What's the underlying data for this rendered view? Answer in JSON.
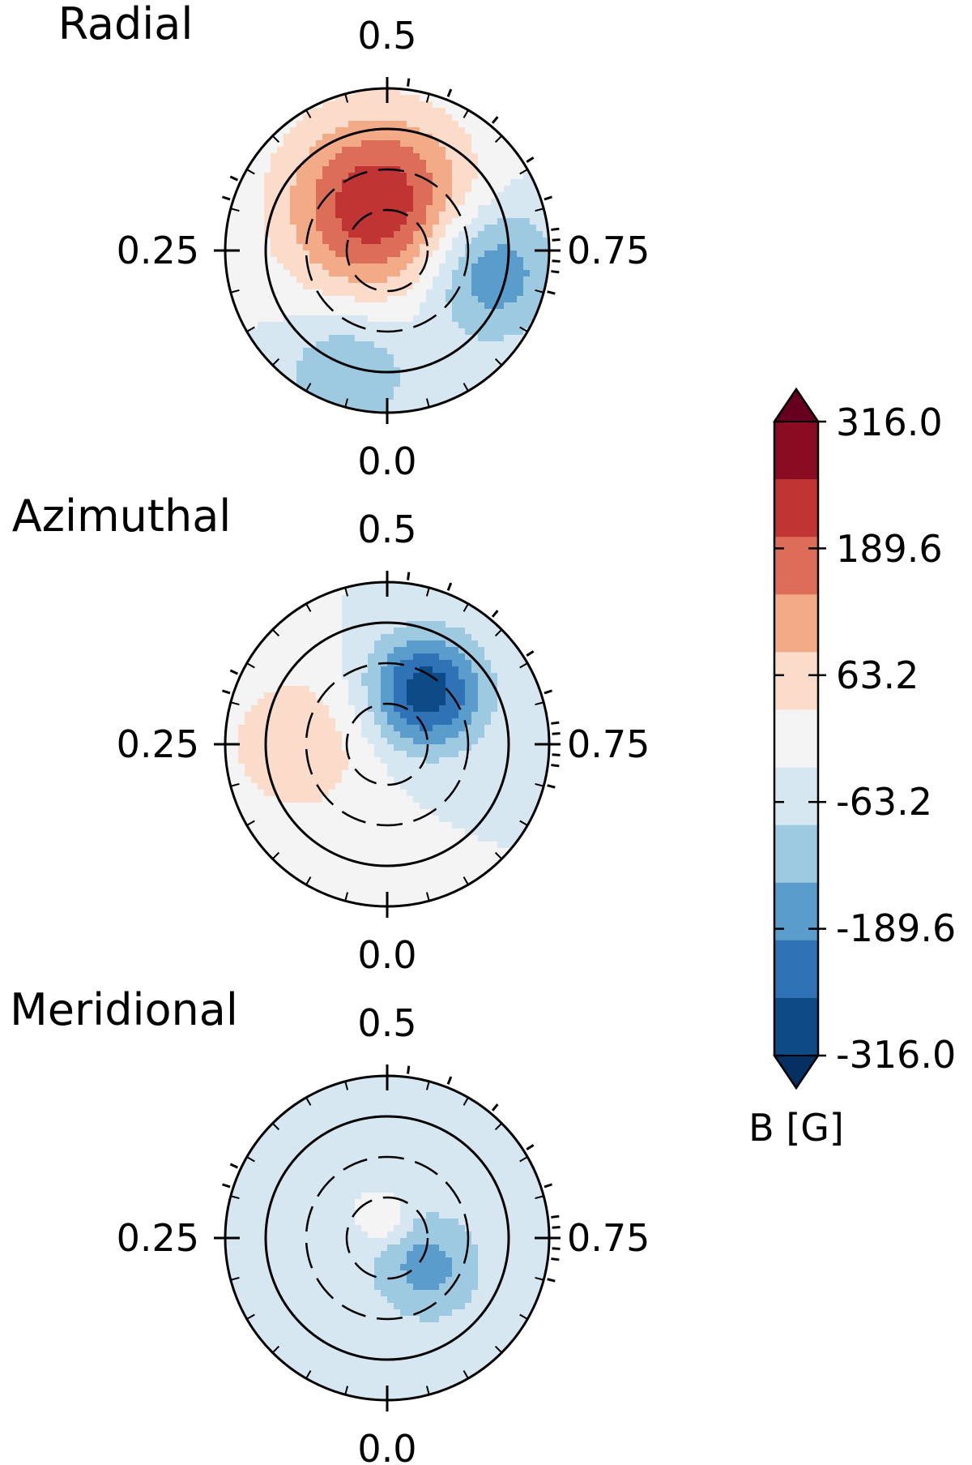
{
  "chart_data": {
    "type": "heatmap",
    "subtype": "polar-contour",
    "panels": [
      {
        "title": "Radial",
        "phase_labels": {
          "top": "0.5",
          "left": "0.25",
          "right": "0.75",
          "bottom": "0.0"
        },
        "features": [
          {
            "kind": "blob",
            "phase": 0.47,
            "colatitude": 28,
            "peak": 316,
            "spread_deg": 40
          },
          {
            "kind": "blob",
            "phase": 0.78,
            "colatitude": 62,
            "peak": -200,
            "spread_deg": 30
          },
          {
            "kind": "blob",
            "phase": 0.05,
            "colatitude": 78,
            "peak": -130,
            "spread_deg": 28
          }
        ]
      },
      {
        "title": "Azimuthal",
        "phase_labels": {
          "top": "0.5",
          "left": "0.25",
          "right": "0.75",
          "bottom": "0.0"
        },
        "features": [
          {
            "kind": "blob",
            "phase": 0.6,
            "colatitude": 40,
            "peak": -300,
            "spread_deg": 25
          },
          {
            "kind": "blob",
            "phase": 0.25,
            "colatitude": 55,
            "peak": 110,
            "spread_deg": 35
          }
        ]
      },
      {
        "title": "Meridional",
        "phase_labels": {
          "top": "0.5",
          "left": "0.25",
          "right": "0.75",
          "bottom": "0.0"
        },
        "features": [
          {
            "kind": "blob",
            "phase": 0.48,
            "colatitude": 10,
            "peak": 90,
            "spread_deg": 10
          },
          {
            "kind": "blob",
            "phase": 0.85,
            "colatitude": 30,
            "peak": -150,
            "spread_deg": 25
          }
        ]
      }
    ],
    "colorbar": {
      "label": "B [G]",
      "ticks": [
        "316.0",
        "189.6",
        "63.2",
        "-63.2",
        "-189.6",
        "-316.0"
      ],
      "vmin": -316.0,
      "vmax": 316.0,
      "extend": "both",
      "levels": [
        -316.0,
        -252.8,
        -189.6,
        -126.4,
        -63.2,
        0,
        63.2,
        126.4,
        189.6,
        252.8,
        316.0
      ],
      "colors": [
        "#053061",
        "#2166ac",
        "#4393c3",
        "#92c5de",
        "#d1e5f0",
        "#f7f7f7",
        "#fddbc7",
        "#f4a582",
        "#d6604d",
        "#b2182b",
        "#67001f"
      ],
      "band_colors": [
        "#0e4a86",
        "#2f73b6",
        "#5a9ccb",
        "#9ecae1",
        "#d6e7f2",
        "#f5f4f4",
        "#fbdccb",
        "#f2aa87",
        "#dc6e59",
        "#c03434",
        "#8a0c23"
      ]
    }
  }
}
